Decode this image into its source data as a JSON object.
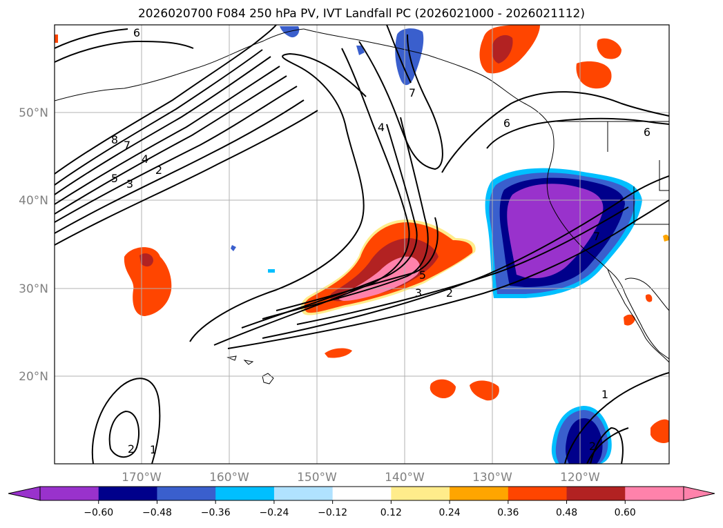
{
  "title": "2026020700 F084 250 hPa PV, IVT Landfall PC (2026021000 - 2026021112)",
  "map": {
    "lat_labels": [
      "50°N",
      "40°N",
      "30°N",
      "20°N"
    ],
    "lon_labels": [
      "170°W",
      "160°W",
      "150°W",
      "140°W",
      "130°W",
      "120°W"
    ],
    "label_color": "#808080"
  },
  "colorbar": {
    "colors": [
      "#9932cc",
      "#00008b",
      "#3a5fcd",
      "#00bfff",
      "#b0e2ff",
      "#ffffff",
      "#ffec8b",
      "#ffa500",
      "#ff4500",
      "#b22222",
      "#ff82ab"
    ],
    "ticks": [
      "−0.60",
      "−0.48",
      "−0.36",
      "−0.24",
      "−0.12",
      "0.12",
      "0.24",
      "0.36",
      "0.48",
      "0.60"
    ]
  },
  "contour_labels": [
    "6",
    "8",
    "7",
    "4",
    "5",
    "3",
    "2",
    "4",
    "7",
    "6",
    "6",
    "7",
    "5",
    "3",
    "2",
    "2",
    "1",
    "1",
    "2"
  ]
}
